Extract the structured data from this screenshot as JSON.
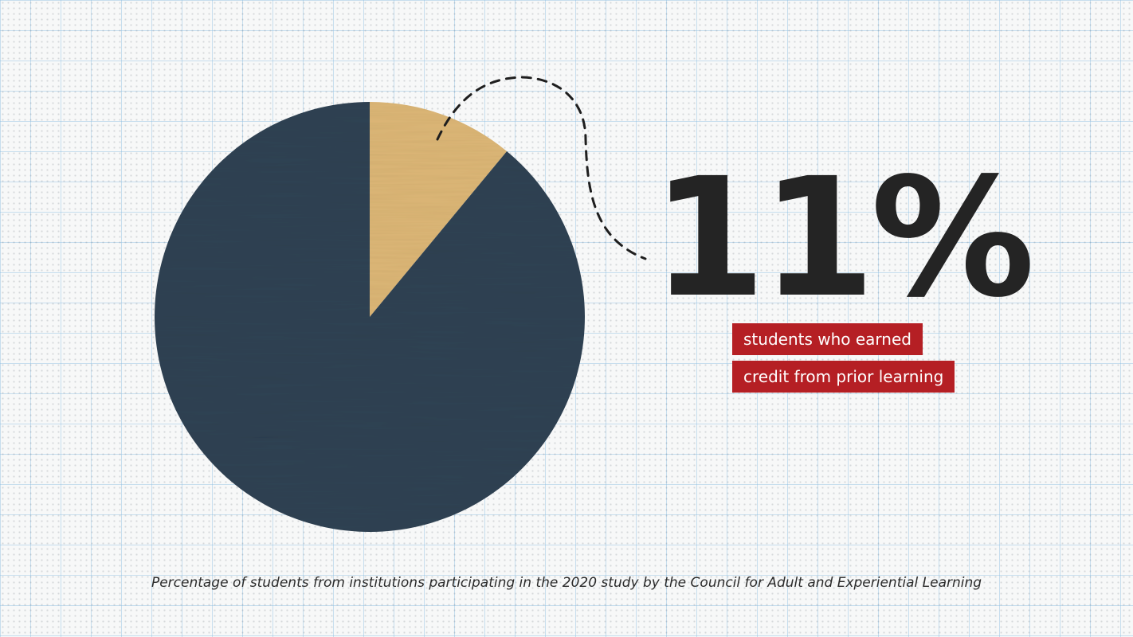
{
  "chart_data": {
    "type": "pie",
    "slices": [
      {
        "label": "students who earned credit from prior learning",
        "value": 11,
        "color": "#dcb676"
      },
      {
        "label": "",
        "value": 89,
        "color": "#2f4253"
      }
    ],
    "highlight_value": "11%",
    "annotation_lines": [
      "students who earned",
      "credit from prior learning"
    ],
    "caption": "Percentage of students from institutions participating in the 2020 study by the Council for Adult and Experiential Learning"
  },
  "colors": {
    "highlight_slice": "#dcb676",
    "remainder_slice": "#2f4253",
    "label_background": "#b51f24",
    "number_text": "#242424",
    "grid_line": "#8cbee1"
  }
}
